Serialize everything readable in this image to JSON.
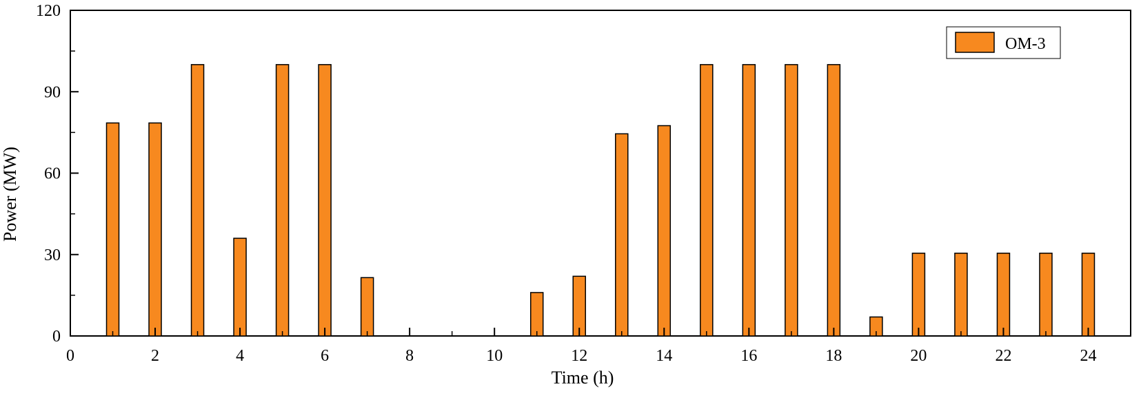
{
  "chart_data": {
    "type": "bar",
    "xlabel": "Time (h)",
    "ylabel": "Power (MW)",
    "xlim": [
      0,
      25
    ],
    "ylim": [
      0,
      120
    ],
    "x_ticks": [
      0,
      2,
      4,
      6,
      8,
      10,
      12,
      14,
      16,
      18,
      20,
      22,
      24
    ],
    "y_ticks": [
      0,
      30,
      60,
      90,
      120
    ],
    "x_minor_step": 1,
    "y_minor_step": 15,
    "grid": false,
    "legend_position": "top-right",
    "series": [
      {
        "name": "OM-3",
        "color": "#F7891F",
        "x": [
          1,
          2,
          3,
          4,
          5,
          6,
          7,
          8,
          9,
          10,
          11,
          12,
          13,
          14,
          15,
          16,
          17,
          18,
          19,
          20,
          21,
          22,
          23,
          24
        ],
        "values": [
          78.5,
          78.5,
          100,
          36,
          100,
          100,
          21.5,
          0,
          0,
          0,
          16,
          22,
          74.5,
          77.5,
          100,
          100,
          100,
          100,
          7,
          30.5,
          30.5,
          30.5,
          30.5,
          30.5
        ]
      }
    ]
  }
}
